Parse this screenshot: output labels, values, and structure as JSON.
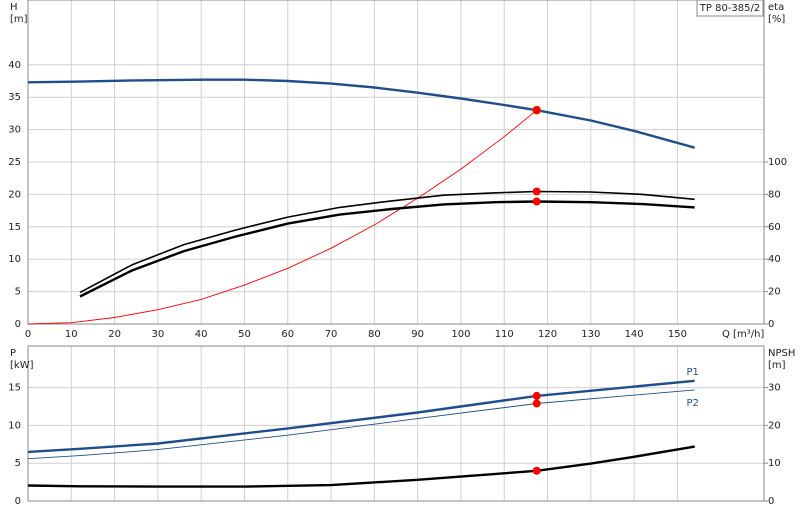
{
  "chart_data": [
    {
      "type": "line",
      "label_box": "TP 80-385/2",
      "ylabel": "H",
      "yunit": "[m]",
      "y2label": "eta",
      "y2unit": "[%]",
      "xlabel": "Q [m³/h]",
      "xlim": [
        0,
        170
      ],
      "xticks": [
        0,
        10,
        20,
        30,
        40,
        50,
        60,
        70,
        80,
        90,
        100,
        110,
        120,
        130,
        140,
        150
      ],
      "ylim": [
        0,
        50
      ],
      "yticks": [
        0,
        5,
        10,
        15,
        20,
        25,
        30,
        35,
        40
      ],
      "y2lim": [
        0,
        200
      ],
      "y2ticks": [
        0,
        20,
        40,
        60,
        80,
        100
      ],
      "grid": true,
      "duty_x": 117.5,
      "duty_color": "#ff0000",
      "series": [
        {
          "color": "#1f4e8c",
          "style": "thick",
          "marker_color": "#ffd700",
          "x": [
            0,
            12,
            25,
            40,
            50,
            60,
            70,
            80,
            90,
            100,
            110,
            117.5,
            130,
            140,
            154
          ],
          "values": [
            37.3,
            37.4,
            37.6,
            37.7,
            37.7,
            37.5,
            37.1,
            36.5,
            35.7,
            34.8,
            33.8,
            33.0,
            31.4,
            29.8,
            27.2
          ]
        },
        {
          "color": "#ff0000",
          "style": "thin",
          "x": [
            0,
            10,
            20,
            30,
            40,
            50,
            60,
            70,
            80,
            90,
            100,
            110,
            117.5
          ],
          "values": [
            0,
            0.2,
            1.0,
            2.2,
            3.8,
            6.0,
            8.6,
            11.7,
            15.3,
            19.4,
            23.9,
            28.9,
            33.0
          ]
        },
        {
          "color": "#000000",
          "style": "medium",
          "axis": "y2",
          "x": [
            12,
            24,
            36,
            48,
            60,
            72,
            84,
            96,
            108,
            117.5,
            130,
            142,
            154
          ],
          "values": [
            19.5,
            36.5,
            49,
            58,
            66,
            72,
            76,
            79.5,
            81,
            81.8,
            81.5,
            80,
            77
          ]
        },
        {
          "color": "#000000",
          "style": "thick",
          "axis": "y2",
          "x": [
            12,
            24,
            36,
            48,
            60,
            72,
            84,
            96,
            108,
            117.5,
            130,
            142,
            154
          ],
          "values": [
            17,
            33,
            45,
            54,
            62,
            67.5,
            71,
            73.8,
            75.2,
            75.6,
            75.2,
            74,
            72
          ]
        }
      ]
    },
    {
      "type": "line",
      "ylabel": "P",
      "yunit": "[kW]",
      "y2label": "NPSH",
      "y2unit": "[m]",
      "xlim": [
        0,
        170
      ],
      "xticks": [
        0,
        10,
        20,
        30,
        40,
        50,
        60,
        70,
        80,
        90,
        100,
        110,
        120,
        130,
        140,
        150
      ],
      "xtick_labels": false,
      "ylim": [
        0,
        20.5
      ],
      "yticks": [
        0,
        5,
        10,
        15
      ],
      "y2lim": [
        0,
        41
      ],
      "y2ticks": [
        0,
        10,
        20,
        30
      ],
      "grid": true,
      "duty_x": 117.5,
      "duty_color": "#ff0000",
      "series": [
        {
          "name": "P1",
          "color": "#1f4e8c",
          "style": "thick",
          "x": [
            0,
            12,
            30,
            60,
            90,
            117.5,
            154
          ],
          "values": [
            6.5,
            6.9,
            7.6,
            9.6,
            11.7,
            13.9,
            15.9
          ]
        },
        {
          "name": "P2",
          "color": "#1f4e8c",
          "style": "thin",
          "x": [
            0,
            12,
            30,
            60,
            90,
            117.5,
            154
          ],
          "values": [
            5.6,
            6.0,
            6.8,
            8.7,
            10.9,
            12.9,
            14.7
          ]
        },
        {
          "color": "#000000",
          "style": "thick",
          "axis": "y2",
          "x": [
            0,
            12,
            30,
            50,
            70,
            90,
            117.5,
            130,
            140,
            154
          ],
          "values": [
            4.1,
            3.9,
            3.8,
            3.8,
            4.2,
            5.6,
            8.0,
            9.9,
            11.7,
            14.4
          ]
        }
      ]
    }
  ]
}
